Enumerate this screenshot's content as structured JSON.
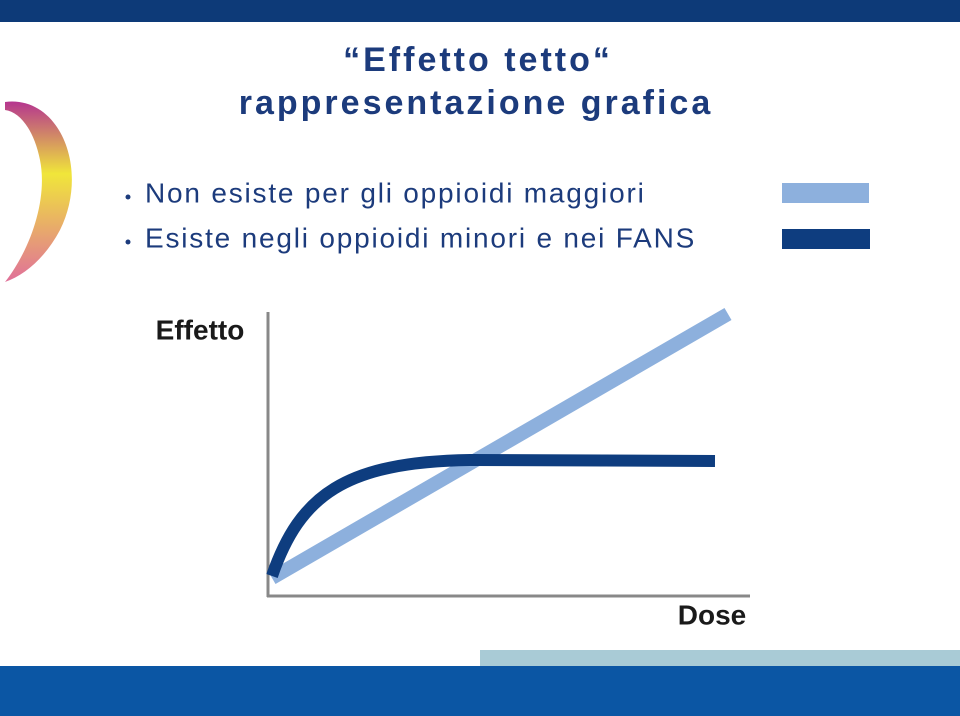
{
  "header": {
    "title_line1": "“Effetto tetto“",
    "title_line2": "rappresentazione grafica"
  },
  "bullets": [
    "Non esiste per gli oppioidi maggiori",
    "Esiste negli oppioidi minori e nei FANS"
  ],
  "diagram": {
    "y_label": "Effetto",
    "x_label": "Dose"
  }
}
